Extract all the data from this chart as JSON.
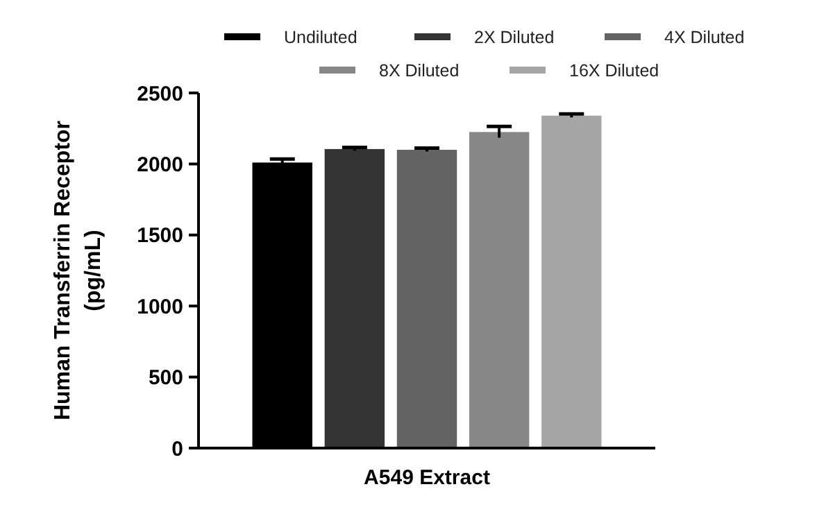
{
  "chart_data": {
    "type": "bar",
    "ylabel": "Human Transferrin Receptor (pg/mL)",
    "categories": [
      "A549 Extract"
    ],
    "series": [
      {
        "name": "Undiluted",
        "color": "#000000",
        "values": [
          2010
        ],
        "errors": [
          25
        ]
      },
      {
        "name": "2X Diluted",
        "color": "#333333",
        "values": [
          2105
        ],
        "errors": [
          12
        ]
      },
      {
        "name": "4X Diluted",
        "color": "#636363",
        "values": [
          2100
        ],
        "errors": [
          12
        ]
      },
      {
        "name": "8X Diluted",
        "color": "#878787",
        "values": [
          2225
        ],
        "errors": [
          40
        ]
      },
      {
        "name": "16X Diluted",
        "color": "#a6a6a6",
        "values": [
          2340
        ],
        "errors": [
          12
        ]
      }
    ],
    "ylim": [
      0,
      2500
    ],
    "yticks": [
      0,
      500,
      1000,
      1500,
      2000,
      2500
    ],
    "grid": false,
    "legend": "top"
  }
}
